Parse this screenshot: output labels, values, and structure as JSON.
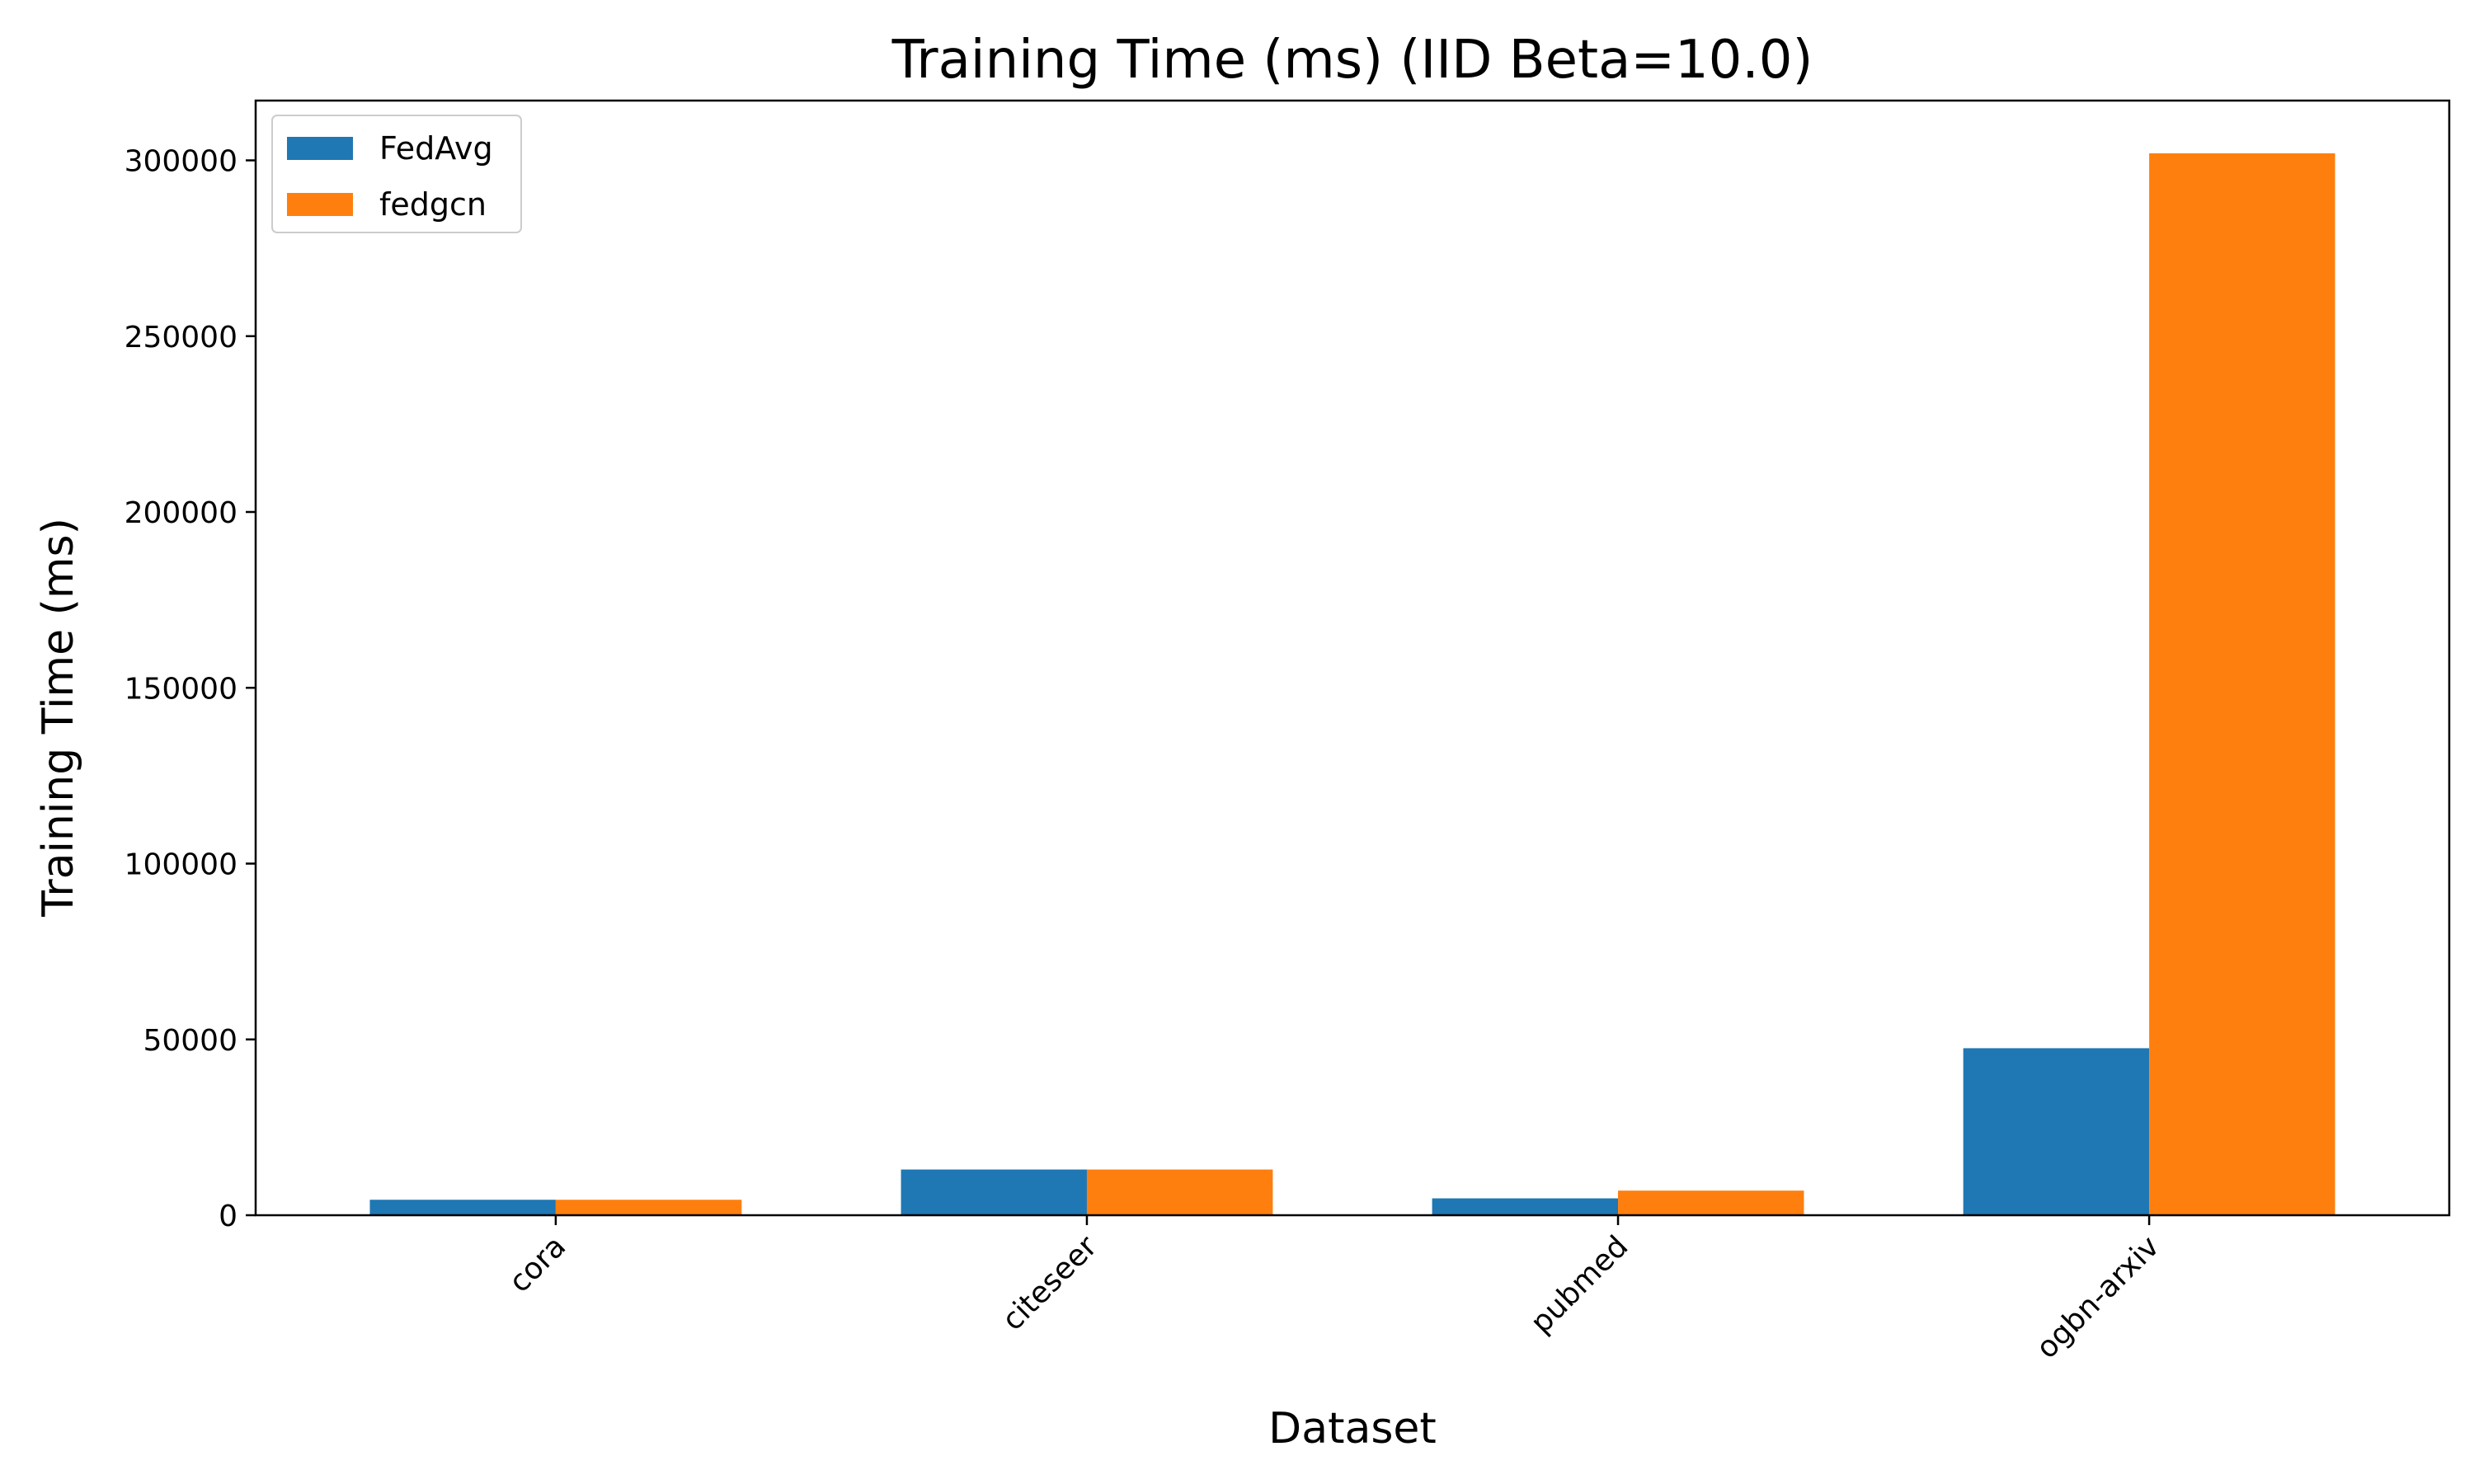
{
  "chart_data": {
    "type": "bar",
    "title": "Training Time (ms) (IID Beta=10.0)",
    "xlabel": "Dataset",
    "ylabel": "Training Time (ms)",
    "categories": [
      "cora",
      "citeseer",
      "pubmed",
      "ogbn-arxiv"
    ],
    "series": [
      {
        "name": "FedAvg",
        "color": "#1f77b4",
        "values": [
          4400,
          13000,
          4800,
          47500
        ]
      },
      {
        "name": "fedgcn",
        "color": "#ff7f0e",
        "values": [
          4400,
          13000,
          7000,
          302000
        ]
      }
    ],
    "ylim": [
      0,
      317000
    ],
    "yticks": [
      0,
      50000,
      100000,
      150000,
      200000,
      250000,
      300000
    ],
    "grid": false,
    "legend_position": "top-left",
    "xtick_rotation": -45
  }
}
